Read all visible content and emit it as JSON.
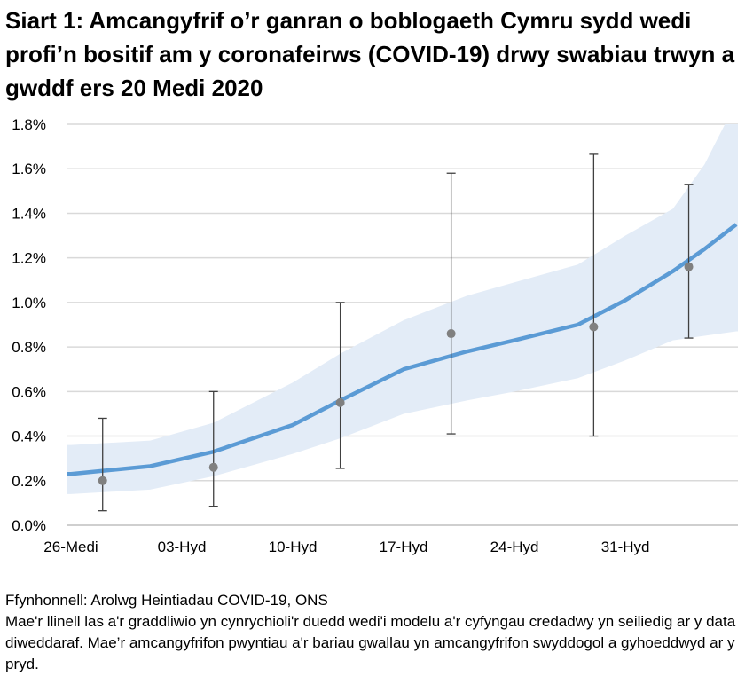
{
  "chart_data": {
    "type": "line",
    "title": "Siart 1: Amcangyfrif o’r ganran o boblogaeth Cymru sydd wedi profi’n bositif am y coronafeirws (COVID-19) drwy swabiau trwyn a gwddf ers 20 Medi 2020",
    "xlim": [
      "2020-09-26",
      "2020-11-07"
    ],
    "ylim": [
      0,
      1.8
    ],
    "y_unit": "%",
    "grid": true,
    "y_ticks": [
      "0.0%",
      "0.2%",
      "0.4%",
      "0.6%",
      "0.8%",
      "1.0%",
      "1.2%",
      "1.4%",
      "1.6%",
      "1.8%"
    ],
    "x_ticks": [
      {
        "date": "2020-09-26",
        "label": "26-Medi"
      },
      {
        "date": "2020-10-03",
        "label": "03-Hyd"
      },
      {
        "date": "2020-10-10",
        "label": "10-Hyd"
      },
      {
        "date": "2020-10-17",
        "label": "17-Hyd"
      },
      {
        "date": "2020-10-24",
        "label": "24-Hyd"
      },
      {
        "date": "2020-10-31",
        "label": "31-Hyd"
      }
    ],
    "trend": {
      "color": "#5b9bd5",
      "band_color": "#e3ecf7",
      "points": [
        {
          "date": "2020-09-26",
          "value": 0.23,
          "upper": 0.36,
          "lower": 0.14
        },
        {
          "date": "2020-10-01",
          "value": 0.265,
          "upper": 0.38,
          "lower": 0.16
        },
        {
          "date": "2020-10-05",
          "value": 0.33,
          "upper": 0.46,
          "lower": 0.22
        },
        {
          "date": "2020-10-10",
          "value": 0.45,
          "upper": 0.64,
          "lower": 0.32
        },
        {
          "date": "2020-10-13",
          "value": 0.56,
          "upper": 0.77,
          "lower": 0.39
        },
        {
          "date": "2020-10-17",
          "value": 0.7,
          "upper": 0.92,
          "lower": 0.5
        },
        {
          "date": "2020-10-21",
          "value": 0.78,
          "upper": 1.03,
          "lower": 0.56
        },
        {
          "date": "2020-10-24",
          "value": 0.83,
          "upper": 1.09,
          "lower": 0.6
        },
        {
          "date": "2020-10-28",
          "value": 0.9,
          "upper": 1.17,
          "lower": 0.66
        },
        {
          "date": "2020-10-31",
          "value": 1.01,
          "upper": 1.3,
          "lower": 0.74
        },
        {
          "date": "2020-11-03",
          "value": 1.14,
          "upper": 1.42,
          "lower": 0.83
        },
        {
          "date": "2020-11-05",
          "value": 1.24,
          "upper": 1.62,
          "lower": 0.85
        },
        {
          "date": "2020-11-07",
          "value": 1.35,
          "upper": 1.9,
          "lower": 0.87
        }
      ]
    },
    "official_estimates": {
      "color": "#808080",
      "points": [
        {
          "date": "2020-09-28",
          "value": 0.2,
          "upper": 0.48,
          "lower": 0.065
        },
        {
          "date": "2020-10-05",
          "value": 0.26,
          "upper": 0.6,
          "lower": 0.085
        },
        {
          "date": "2020-10-13",
          "value": 0.55,
          "upper": 1.0,
          "lower": 0.255
        },
        {
          "date": "2020-10-20",
          "value": 0.86,
          "upper": 1.58,
          "lower": 0.41
        },
        {
          "date": "2020-10-29",
          "value": 0.89,
          "upper": 1.665,
          "lower": 0.4
        },
        {
          "date": "2020-11-04",
          "value": 1.16,
          "upper": 1.53,
          "lower": 0.84
        }
      ]
    }
  },
  "notes": {
    "source": "Ffynhonnell: Arolwg Heintiadau COVID-19, ONS",
    "description": "Mae'r llinell las a'r graddliwio yn cynrychioli'r duedd wedi'i modelu a'r cyfyngau credadwy yn seiliedig ar y data diweddaraf. Mae’r amcangyfrifon pwyntiau a'r bariau gwallau yn amcangyfrifon swyddogol a gyhoeddwyd ar y pryd."
  }
}
